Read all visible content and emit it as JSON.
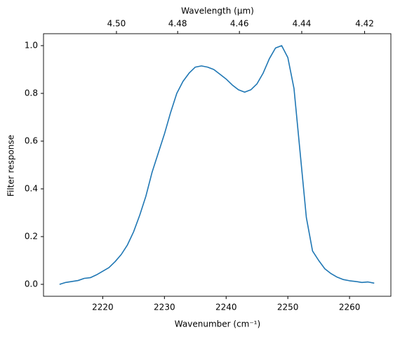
{
  "chart_data": {
    "type": "line",
    "xlabel": "Wavenumber (cm⁻¹)",
    "ylabel": "Filter response",
    "x2label": "Wavelength (μm)",
    "x": [
      2213,
      2214,
      2215,
      2216,
      2217,
      2218,
      2219,
      2220,
      2221,
      2222,
      2223,
      2224,
      2225,
      2226,
      2227,
      2228,
      2229,
      2230,
      2231,
      2232,
      2233,
      2234,
      2235,
      2236,
      2237,
      2238,
      2239,
      2240,
      2241,
      2242,
      2243,
      2244,
      2245,
      2246,
      2247,
      2248,
      2249,
      2250,
      2251,
      2252,
      2253,
      2254,
      2255,
      2256,
      2257,
      2258,
      2259,
      2260,
      2261,
      2262,
      2263,
      2264
    ],
    "values": [
      0.0,
      0.008,
      0.012,
      0.016,
      0.025,
      0.028,
      0.04,
      0.055,
      0.07,
      0.095,
      0.125,
      0.165,
      0.22,
      0.29,
      0.37,
      0.47,
      0.55,
      0.63,
      0.72,
      0.8,
      0.85,
      0.885,
      0.91,
      0.915,
      0.91,
      0.9,
      0.88,
      0.86,
      0.835,
      0.815,
      0.805,
      0.815,
      0.84,
      0.885,
      0.945,
      0.99,
      1.0,
      0.95,
      0.82,
      0.55,
      0.28,
      0.14,
      0.1,
      0.065,
      0.045,
      0.03,
      0.02,
      0.015,
      0.012,
      0.008,
      0.01,
      0.005
    ],
    "color": "#1f77b4",
    "xlim": [
      2210.4,
      2266.7
    ],
    "ylim": [
      -0.05,
      1.05
    ],
    "xticks": [
      2220,
      2230,
      2240,
      2250,
      2260
    ],
    "yticks": [
      {
        "value": 0,
        "label": "0.0"
      },
      0.2,
      0.4,
      0.6,
      0.8,
      {
        "value": 1,
        "label": "1.0"
      }
    ],
    "x2ticks": [
      {
        "value": 4.5,
        "label": "4.50"
      },
      4.48,
      4.46,
      4.44,
      4.42
    ],
    "grid": false
  }
}
